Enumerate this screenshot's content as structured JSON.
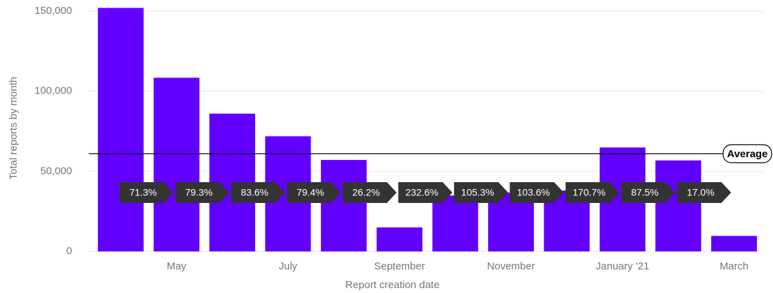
{
  "chart_data": {
    "type": "bar",
    "x_label": "Report creation date",
    "y_label": "Total reports by month",
    "categories": [
      null,
      "May",
      null,
      "July",
      null,
      "September",
      null,
      "November",
      null,
      "January '21",
      null,
      "March"
    ],
    "values": [
      152000,
      108400,
      86000,
      71900,
      57100,
      15000,
      34900,
      36700,
      38000,
      64900,
      56800,
      9700
    ],
    "color": "#6200ff",
    "ylim": [
      0,
      150000
    ],
    "yticks": [
      0,
      {
        "value": 50000,
        "label": "50,000"
      },
      {
        "value": 100000,
        "label": "100,000"
      },
      {
        "value": 150000,
        "label": "150,000"
      }
    ],
    "grid": true,
    "average": {
      "value": 61000,
      "label": "Average"
    },
    "change_labels": [
      "71.3%",
      "79.3%",
      "83.6%",
      "79.4%",
      "26.2%",
      "232.6%",
      "105.3%",
      "103.6%",
      "170.7%",
      "87.5%",
      "17.0%"
    ]
  }
}
